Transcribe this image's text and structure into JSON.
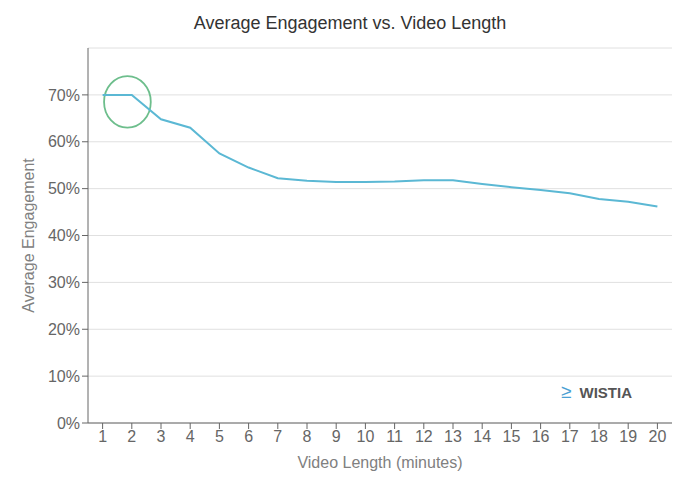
{
  "chart_data": {
    "type": "line",
    "title": "Average Engagement vs. Video Length",
    "xlabel": "Video Length (minutes)",
    "ylabel": "Average Engagement",
    "x": [
      1,
      2,
      3,
      4,
      5,
      6,
      7,
      8,
      9,
      10,
      11,
      12,
      13,
      14,
      15,
      16,
      17,
      18,
      19,
      20
    ],
    "values": [
      0.7,
      0.7,
      0.648,
      0.63,
      0.575,
      0.545,
      0.522,
      0.517,
      0.514,
      0.514,
      0.515,
      0.518,
      0.518,
      0.51,
      0.503,
      0.497,
      0.49,
      0.478,
      0.472,
      0.462
    ],
    "color": "#5bb8d4",
    "xlim": [
      0.5,
      20.5
    ],
    "ylim": [
      0,
      0.8
    ],
    "xticks": [
      1,
      2,
      3,
      4,
      5,
      6,
      7,
      8,
      9,
      10,
      11,
      12,
      13,
      14,
      15,
      16,
      17,
      18,
      19,
      20
    ],
    "yticks": [
      {
        "value": 0.0,
        "label": "0%"
      },
      {
        "value": 0.1,
        "label": "10%"
      },
      {
        "value": 0.2,
        "label": "20%"
      },
      {
        "value": 0.3,
        "label": "30%"
      },
      {
        "value": 0.4,
        "label": "40%"
      },
      {
        "value": 0.5,
        "label": "50%"
      },
      {
        "value": 0.6,
        "label": "60%"
      },
      {
        "value": 0.7,
        "label": "70%"
      }
    ],
    "grid": true,
    "annotations": [
      {
        "shape": "ellipse",
        "x": 1.85,
        "y": 0.685,
        "width": 1.6,
        "height": 0.11,
        "color": "#6dbe8c"
      },
      {
        "text": "≥",
        "color": "#4a9fd4"
      },
      {
        "text": "WISTIA",
        "color": "#555555"
      }
    ]
  }
}
